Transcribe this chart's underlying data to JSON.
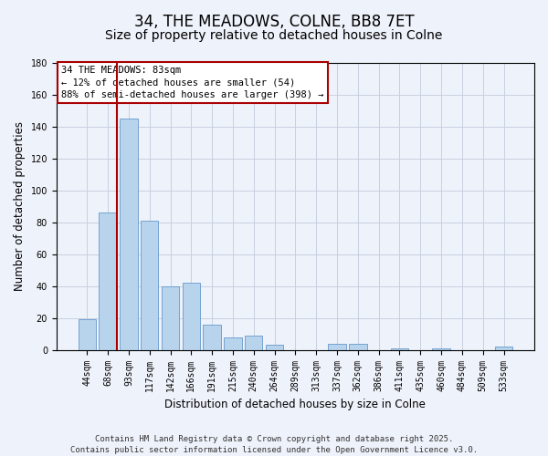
{
  "title": "34, THE MEADOWS, COLNE, BB8 7ET",
  "subtitle": "Size of property relative to detached houses in Colne",
  "xlabel": "Distribution of detached houses by size in Colne",
  "ylabel": "Number of detached properties",
  "categories": [
    "44sqm",
    "68sqm",
    "93sqm",
    "117sqm",
    "142sqm",
    "166sqm",
    "191sqm",
    "215sqm",
    "240sqm",
    "264sqm",
    "289sqm",
    "313sqm",
    "337sqm",
    "362sqm",
    "386sqm",
    "411sqm",
    "435sqm",
    "460sqm",
    "484sqm",
    "509sqm",
    "533sqm"
  ],
  "values": [
    19,
    86,
    145,
    81,
    40,
    42,
    16,
    8,
    9,
    3,
    0,
    0,
    4,
    4,
    0,
    1,
    0,
    1,
    0,
    0,
    2
  ],
  "bar_color": "#b8d4ec",
  "bar_edge_color": "#6699cc",
  "grid_color": "#c8d0e0",
  "background_color": "#eef2fa",
  "reference_line_color": "#aa0000",
  "annotation_text": "34 THE MEADOWS: 83sqm\n← 12% of detached houses are smaller (54)\n88% of semi-detached houses are larger (398) →",
  "annotation_box_color": "#ffffff",
  "annotation_border_color": "#aa0000",
  "ylim": [
    0,
    180
  ],
  "yticks": [
    0,
    20,
    40,
    60,
    80,
    100,
    120,
    140,
    160,
    180
  ],
  "footer_line1": "Contains HM Land Registry data © Crown copyright and database right 2025.",
  "footer_line2": "Contains public sector information licensed under the Open Government Licence v3.0.",
  "title_fontsize": 12,
  "subtitle_fontsize": 10,
  "tick_fontsize": 7,
  "ylabel_fontsize": 8.5,
  "xlabel_fontsize": 8.5,
  "annotation_fontsize": 7.5,
  "footer_fontsize": 6.5
}
